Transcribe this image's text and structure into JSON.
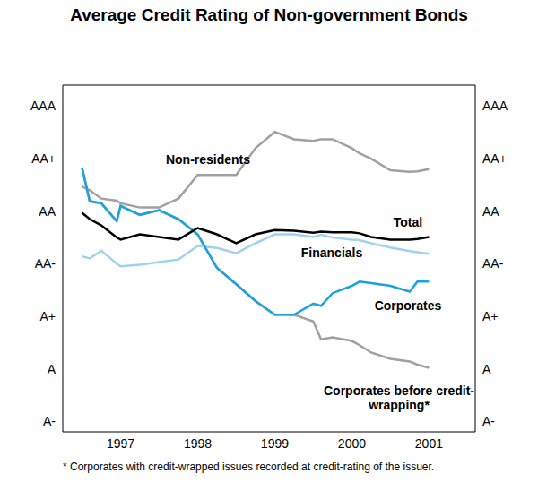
{
  "chart_data": {
    "type": "line",
    "title": "Average Credit Rating of Non-government Bonds",
    "footnote": "* Corporates with credit-wrapped issues recorded at credit-rating of the issuer.",
    "x": [
      1997.0,
      1997.1,
      1997.25,
      1997.45,
      1997.5,
      1997.75,
      1998.0,
      1998.25,
      1998.5,
      1998.75,
      1999.0,
      1999.25,
      1999.5,
      1999.75,
      2000.0,
      2000.1,
      2000.25,
      2000.5,
      2000.6,
      2000.75,
      2001.0,
      2001.25,
      2001.35,
      2001.5
    ],
    "xlim": [
      1996.75,
      2002.1
    ],
    "xticks": [
      {
        "value": 1997.5,
        "label": "1997"
      },
      {
        "value": 1998.5,
        "label": "1998"
      },
      {
        "value": 1999.5,
        "label": "1999"
      },
      {
        "value": 2000.5,
        "label": "2000"
      },
      {
        "value": 2001.5,
        "label": "2001"
      }
    ],
    "ylim": [
      0.8,
      7.4
    ],
    "yticks": [
      {
        "value": 1,
        "label": "A-"
      },
      {
        "value": 2,
        "label": "A"
      },
      {
        "value": 3,
        "label": "A+"
      },
      {
        "value": 4,
        "label": "AA-"
      },
      {
        "value": 5,
        "label": "AA"
      },
      {
        "value": 6,
        "label": "AA+"
      },
      {
        "value": 7,
        "label": "AAA"
      }
    ],
    "y2lim": [
      0.8,
      7.4
    ],
    "y2ticks": [
      {
        "value": 1,
        "label": "A-"
      },
      {
        "value": 2,
        "label": "A"
      },
      {
        "value": 3,
        "label": "A+"
      },
      {
        "value": 4,
        "label": "AA-"
      },
      {
        "value": 5,
        "label": "AA"
      },
      {
        "value": 6,
        "label": "AA+"
      },
      {
        "value": 7,
        "label": "AAA"
      }
    ],
    "grid": false,
    "series": [
      {
        "name": "Corporates before credit-wrapping*",
        "color": "#a0a0a0",
        "values": [
          5.83,
          5.19,
          5.15,
          4.81,
          5.1,
          4.93,
          5.02,
          4.85,
          4.56,
          3.92,
          3.61,
          3.29,
          3.03,
          3.03,
          2.9,
          2.56,
          2.6,
          2.53,
          2.45,
          2.31,
          2.19,
          2.14,
          2.08,
          2.02
        ]
      },
      {
        "name": "Non-residents",
        "color": "#a0a0a0",
        "values": [
          5.47,
          5.4,
          5.24,
          5.2,
          5.15,
          5.07,
          5.07,
          5.24,
          5.69,
          5.69,
          5.69,
          6.2,
          6.51,
          6.37,
          6.34,
          6.37,
          6.37,
          6.2,
          6.1,
          6.0,
          5.78,
          5.75,
          5.76,
          5.8
        ]
      },
      {
        "name": "Financials",
        "color": "#9fd3ec",
        "values": [
          4.14,
          4.1,
          4.25,
          4.0,
          3.95,
          3.98,
          4.03,
          4.08,
          4.34,
          4.3,
          4.2,
          4.39,
          4.56,
          4.56,
          4.51,
          4.55,
          4.5,
          4.46,
          4.45,
          4.39,
          4.31,
          4.24,
          4.22,
          4.19
        ]
      },
      {
        "name": "Corporates",
        "color": "#1aa3df",
        "values": [
          5.83,
          5.19,
          5.15,
          4.81,
          5.1,
          4.93,
          5.02,
          4.85,
          4.56,
          3.92,
          3.61,
          3.29,
          3.03,
          3.03,
          3.24,
          3.2,
          3.44,
          3.58,
          3.66,
          3.63,
          3.58,
          3.47,
          3.66,
          3.66
        ]
      },
      {
        "name": "Total",
        "color": "#000000",
        "values": [
          4.97,
          4.85,
          4.73,
          4.5,
          4.46,
          4.56,
          4.51,
          4.46,
          4.68,
          4.56,
          4.39,
          4.56,
          4.64,
          4.63,
          4.59,
          4.61,
          4.6,
          4.6,
          4.58,
          4.51,
          4.46,
          4.46,
          4.47,
          4.51
        ]
      }
    ]
  }
}
